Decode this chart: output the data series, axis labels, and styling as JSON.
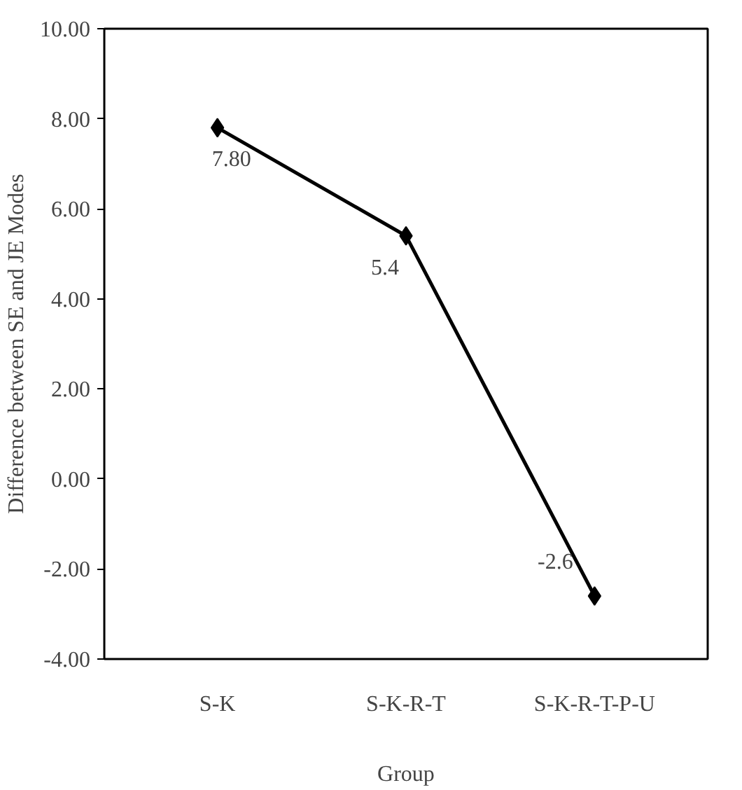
{
  "chart_data": {
    "type": "line",
    "xlabel": "Group",
    "ylabel": "Difference between SE and JE Modes",
    "categories": [
      "S-K",
      "S-K-R-T",
      "S-K-R-T-P-U"
    ],
    "series": [
      {
        "color": "#000000",
        "values": [
          7.8,
          5.4,
          -2.6
        ],
        "value_labels": [
          "7.80",
          "5.4",
          "-2.6"
        ]
      }
    ],
    "ylim": [
      -4,
      10
    ],
    "yticks": [
      {
        "value": -4,
        "label": "-4.00"
      },
      {
        "value": -2,
        "label": "-2.00"
      },
      {
        "value": 0,
        "label": "0.00"
      },
      {
        "value": 2,
        "label": "2.00"
      },
      {
        "value": 4,
        "label": "4.00"
      },
      {
        "value": 6,
        "label": "6.00"
      },
      {
        "value": 8,
        "label": "8.00"
      },
      {
        "value": 10,
        "label": "10.00"
      }
    ],
    "grid": false,
    "marker": "diamond",
    "line_style": "solid"
  }
}
